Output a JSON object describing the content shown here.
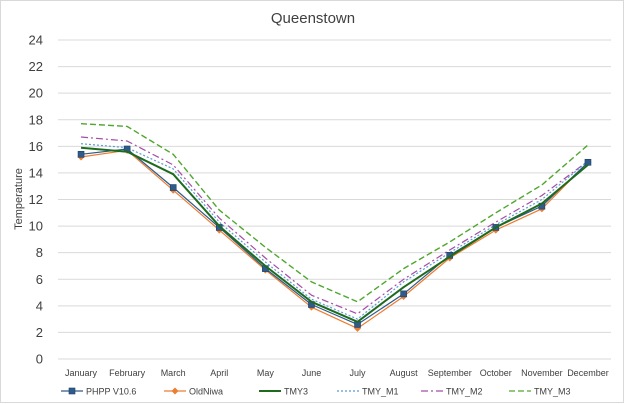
{
  "chart_data": {
    "type": "line",
    "title": "Queenstown",
    "xlabel": "",
    "ylabel": "Temperature",
    "ylim": [
      0,
      24
    ],
    "yticks": [
      "0",
      "2",
      "4",
      "6",
      "8",
      "10",
      "12",
      "14",
      "16",
      "18",
      "20",
      "22",
      "24"
    ],
    "grid": "horizontal",
    "legend_position": "bottom",
    "categories": [
      "January",
      "February",
      "March",
      "April",
      "May",
      "June",
      "July",
      "August",
      "September",
      "October",
      "November",
      "December"
    ],
    "series": [
      {
        "name": "PHPP V10.6",
        "color": "#2e5b8a",
        "dash": "solid",
        "marker": "square",
        "values": [
          15.4,
          15.8,
          12.9,
          9.9,
          6.8,
          4.1,
          2.6,
          4.9,
          7.8,
          9.9,
          11.5,
          14.8
        ]
      },
      {
        "name": "OldNiwa",
        "color": "#ed7d31",
        "dash": "solid",
        "marker": "diamond",
        "values": [
          15.2,
          15.7,
          12.7,
          9.7,
          6.7,
          3.9,
          2.3,
          4.7,
          7.6,
          9.7,
          11.3,
          14.8
        ]
      },
      {
        "name": "TMY3",
        "color": "#1e6b1e",
        "dash": "solid",
        "marker": "none",
        "values": [
          15.9,
          15.6,
          13.9,
          10.0,
          7.0,
          4.3,
          2.8,
          5.4,
          7.7,
          9.9,
          11.7,
          14.6
        ]
      },
      {
        "name": "TMY_M1",
        "color": "#5b9bd5",
        "dash": "dotted",
        "marker": "none",
        "values": [
          16.2,
          15.9,
          14.3,
          10.3,
          7.3,
          4.5,
          3.0,
          5.8,
          8.0,
          10.1,
          12.0,
          14.9
        ]
      },
      {
        "name": "TMY_M2",
        "color": "#a64ca6",
        "dash": "dashdot",
        "marker": "none",
        "values": [
          16.7,
          16.4,
          14.6,
          10.6,
          7.6,
          4.8,
          3.4,
          6.0,
          8.2,
          10.3,
          12.3,
          14.9
        ]
      },
      {
        "name": "TMY_M3",
        "color": "#4ea72e",
        "dash": "dashed",
        "marker": "none",
        "values": [
          17.7,
          17.5,
          15.4,
          11.2,
          8.4,
          5.8,
          4.3,
          6.8,
          8.8,
          11.0,
          13.1,
          16.1
        ]
      }
    ]
  }
}
